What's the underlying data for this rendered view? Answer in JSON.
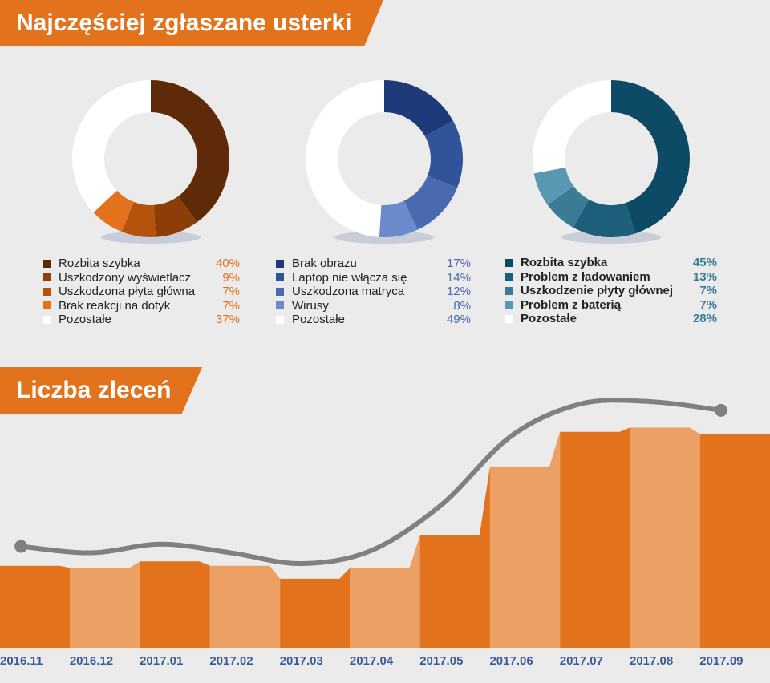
{
  "titles": {
    "faults": "Najczęściej zgłaszane usterki",
    "orders": "Liczba zleceń"
  },
  "chart_data": [
    {
      "type": "pie",
      "donut": true,
      "labels": [
        "Rozbita szybka",
        "Uszkodzony wyświetlacz",
        "Uszkodzona płyta główna",
        "Brak reakcji na dotyk",
        "Pozostałe"
      ],
      "values": [
        40,
        9,
        7,
        7,
        37
      ],
      "value_labels": [
        "40%",
        "9%",
        "7%",
        "7%",
        "37%"
      ],
      "colors": [
        "#5e2a07",
        "#8c3d08",
        "#b5520b",
        "#e2731c",
        "#ffffff"
      ],
      "value_color": "#e2731c"
    },
    {
      "type": "pie",
      "donut": true,
      "labels": [
        "Brak obrazu",
        "Laptop nie włącza się",
        "Uszkodzona matryca",
        "Wirusy",
        "Pozostałe"
      ],
      "values": [
        17,
        14,
        12,
        8,
        49
      ],
      "value_labels": [
        "17%",
        "14%",
        "12%",
        "8%",
        "49%"
      ],
      "colors": [
        "#1f3a7a",
        "#31539a",
        "#4a6ab0",
        "#6b8acb",
        "#ffffff"
      ],
      "value_color": "#4a6ab0"
    },
    {
      "type": "pie",
      "donut": true,
      "labels": [
        "Rozbita szybka",
        "Problem z ładowaniem",
        "Uszkodzenie płyty głównej",
        "Problem z baterią",
        "Pozostałe"
      ],
      "values": [
        45,
        13,
        7,
        7,
        28
      ],
      "value_labels": [
        "45%",
        "13%",
        "7%",
        "7%",
        "28%"
      ],
      "colors": [
        "#0d4a66",
        "#1d5e7b",
        "#3a7b96",
        "#5a97b3",
        "#ffffff"
      ],
      "value_color": "#3a7b96"
    },
    {
      "type": "area",
      "title": "Liczba zleceń",
      "categories": [
        "2016.11",
        "2016.12",
        "2017.01",
        "2017.02",
        "2017.03",
        "2017.04",
        "2017.05",
        "2017.06",
        "2017.07",
        "2017.08",
        "2017.09"
      ],
      "series": [
        {
          "name": "bars",
          "values": [
            38,
            37,
            40,
            38,
            32,
            37,
            52,
            84,
            100,
            102,
            99
          ]
        },
        {
          "name": "line",
          "values": [
            47,
            44,
            48,
            44,
            39,
            45,
            66,
            98,
            113,
            114,
            110
          ]
        }
      ],
      "ylim": [
        0,
        130
      ],
      "colors": {
        "bar_dark": "#e2731c",
        "bar_light": "#eda063",
        "line": "#808080"
      }
    }
  ]
}
